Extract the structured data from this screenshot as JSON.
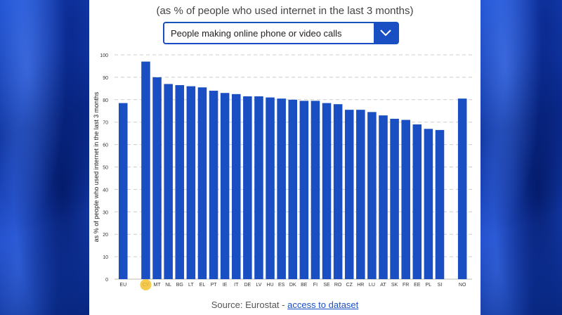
{
  "header": {
    "subtitle": "(as % of people who used internet in the last 3 months)"
  },
  "dropdown": {
    "selected": "People making online phone or video calls",
    "icon": "chevron-down-icon"
  },
  "source": {
    "prefix": "Source: Eurostat - ",
    "link": "access to dataset"
  },
  "colors": {
    "bar": "#1a4fc4",
    "accent": "#1a4fc4",
    "highlight": "#f2c230"
  },
  "chart_data": {
    "type": "bar",
    "title": "",
    "xlabel": "",
    "ylabel": "as % of people who used internet in the last 3 months",
    "ylim": [
      0,
      100
    ],
    "yticks": [
      0,
      10,
      20,
      30,
      40,
      50,
      60,
      70,
      80,
      90,
      100
    ],
    "grid": true,
    "categories": [
      "EU",
      "CY",
      "MT",
      "NL",
      "BG",
      "LT",
      "EL",
      "PT",
      "IE",
      "IT",
      "DE",
      "LV",
      "HU",
      "ES",
      "DK",
      "BE",
      "FI",
      "SE",
      "RO",
      "CZ",
      "HR",
      "LU",
      "AT",
      "SK",
      "FR",
      "EE",
      "PL",
      "SI",
      "NO"
    ],
    "values": [
      78.5,
      97,
      90,
      87,
      86.5,
      86,
      85.5,
      84,
      83,
      82.5,
      81.5,
      81.5,
      81,
      80.5,
      80,
      79.5,
      79.5,
      78.5,
      78,
      75.5,
      75.5,
      74.5,
      73,
      71.5,
      71,
      69,
      67,
      66.5,
      80.5
    ]
  }
}
